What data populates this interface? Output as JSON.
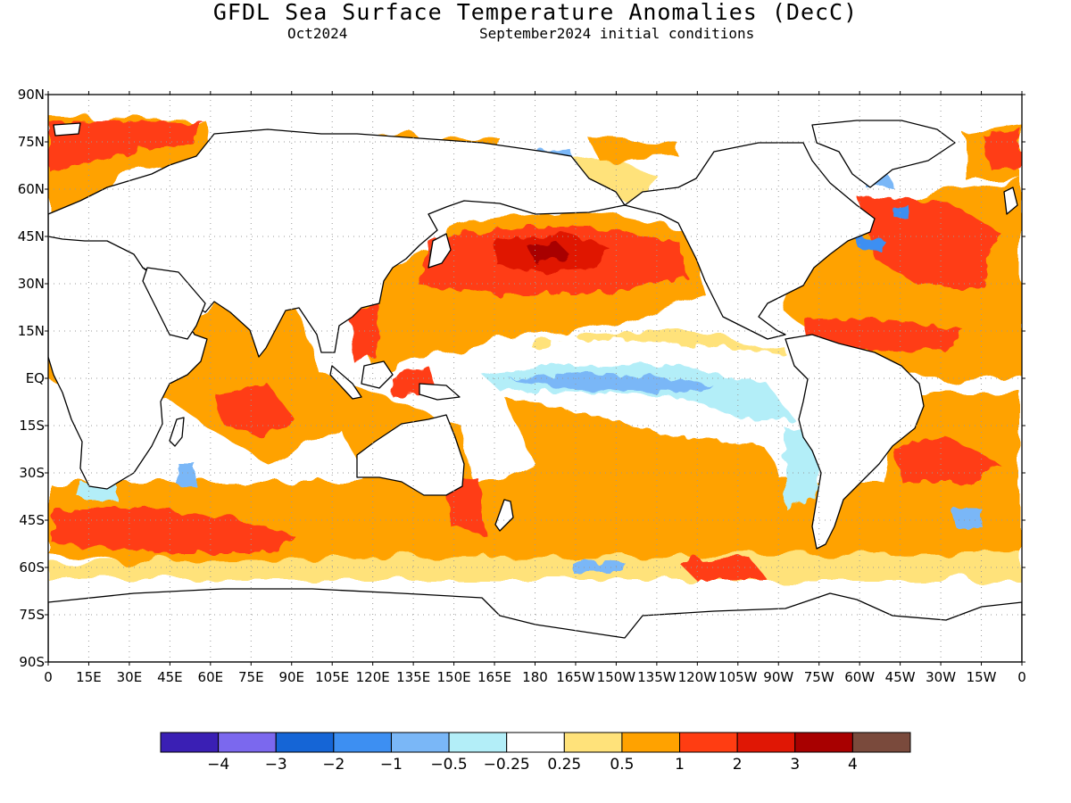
{
  "title": "GFDL Sea Surface Temperature Anomalies (DecC)",
  "subtitle_left": "Oct2024",
  "subtitle_right": "September2024 initial conditions",
  "lat_ticks": [
    "90N",
    "75N",
    "60N",
    "45N",
    "30N",
    "15N",
    "EQ",
    "15S",
    "30S",
    "45S",
    "60S",
    "75S",
    "90S"
  ],
  "lon_ticks": [
    "0",
    "15E",
    "30E",
    "45E",
    "60E",
    "75E",
    "90E",
    "105E",
    "120E",
    "135E",
    "150E",
    "165E",
    "180",
    "165W",
    "150W",
    "135W",
    "120W",
    "105W",
    "90W",
    "75W",
    "60W",
    "45W",
    "30W",
    "15W",
    "0"
  ],
  "colorbar": {
    "colors": [
      "#3a1fb4",
      "#7b68ee",
      "#1565d6",
      "#3d8ff2",
      "#7ab7f7",
      "#b3eef8",
      "#ffffff",
      "#ffe27a",
      "#ffa200",
      "#ff3d12",
      "#e01705",
      "#a80000",
      "#7a4a3c"
    ],
    "labels": [
      "-4",
      "-3",
      "-2",
      "-1",
      "-0.5",
      "-0.25",
      "0.25",
      "0.5",
      "1",
      "2",
      "3",
      "4"
    ]
  },
  "colors": {
    "land": "#ffffff",
    "coast": "#000000",
    "grid": "#9a9a9a"
  }
}
